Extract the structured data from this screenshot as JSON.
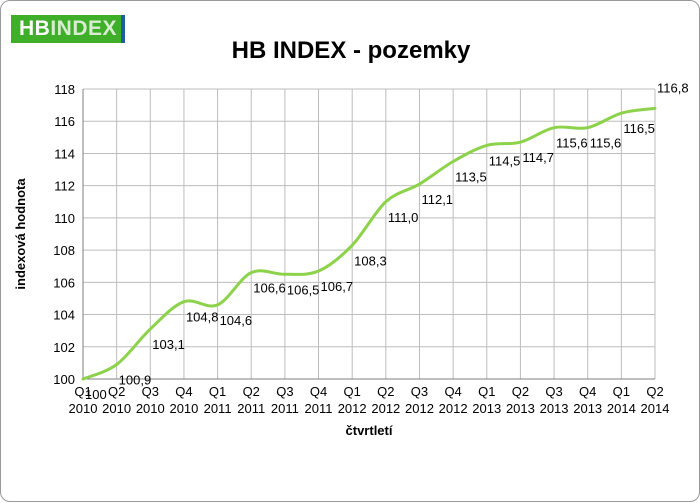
{
  "logo": {
    "text_a": "HB",
    "text_b": "INDEX"
  },
  "chart_data": {
    "type": "line",
    "title": "HB INDEX - pozemky",
    "xlabel": "čtvrtletí",
    "ylabel": "indexová hodnota",
    "ylim": [
      100,
      118
    ],
    "yticks": [
      100,
      102,
      104,
      106,
      108,
      110,
      112,
      114,
      116,
      118
    ],
    "grid": true,
    "legend": "none",
    "color": "#8cd24a",
    "categories": [
      [
        "Q1",
        "2010"
      ],
      [
        "Q2",
        "2010"
      ],
      [
        "Q3",
        "2010"
      ],
      [
        "Q4",
        "2010"
      ],
      [
        "Q1",
        "2011"
      ],
      [
        "Q2",
        "2011"
      ],
      [
        "Q3",
        "2011"
      ],
      [
        "Q4",
        "2011"
      ],
      [
        "Q1",
        "2012"
      ],
      [
        "Q2",
        "2012"
      ],
      [
        "Q3",
        "2012"
      ],
      [
        "Q4",
        "2012"
      ],
      [
        "Q1",
        "2013"
      ],
      [
        "Q2",
        "2013"
      ],
      [
        "Q3",
        "2013"
      ],
      [
        "Q4",
        "2013"
      ],
      [
        "Q1",
        "2014"
      ],
      [
        "Q2",
        "2014"
      ]
    ],
    "series": [
      {
        "values": [
          100,
          100.9,
          103.1,
          104.8,
          104.6,
          106.6,
          106.5,
          106.7,
          108.3,
          111.0,
          112.1,
          113.5,
          114.5,
          114.7,
          115.6,
          115.6,
          116.5,
          116.8
        ],
        "labels": [
          "100",
          "100,9",
          "103,1",
          "104,8",
          "104,6",
          "106,6",
          "106,5",
          "106,7",
          "108,3",
          "111,0",
          "112,1",
          "113,5",
          "114,5",
          "114,7",
          "115,6",
          "115,6",
          "116,5",
          "116,8"
        ]
      }
    ]
  }
}
